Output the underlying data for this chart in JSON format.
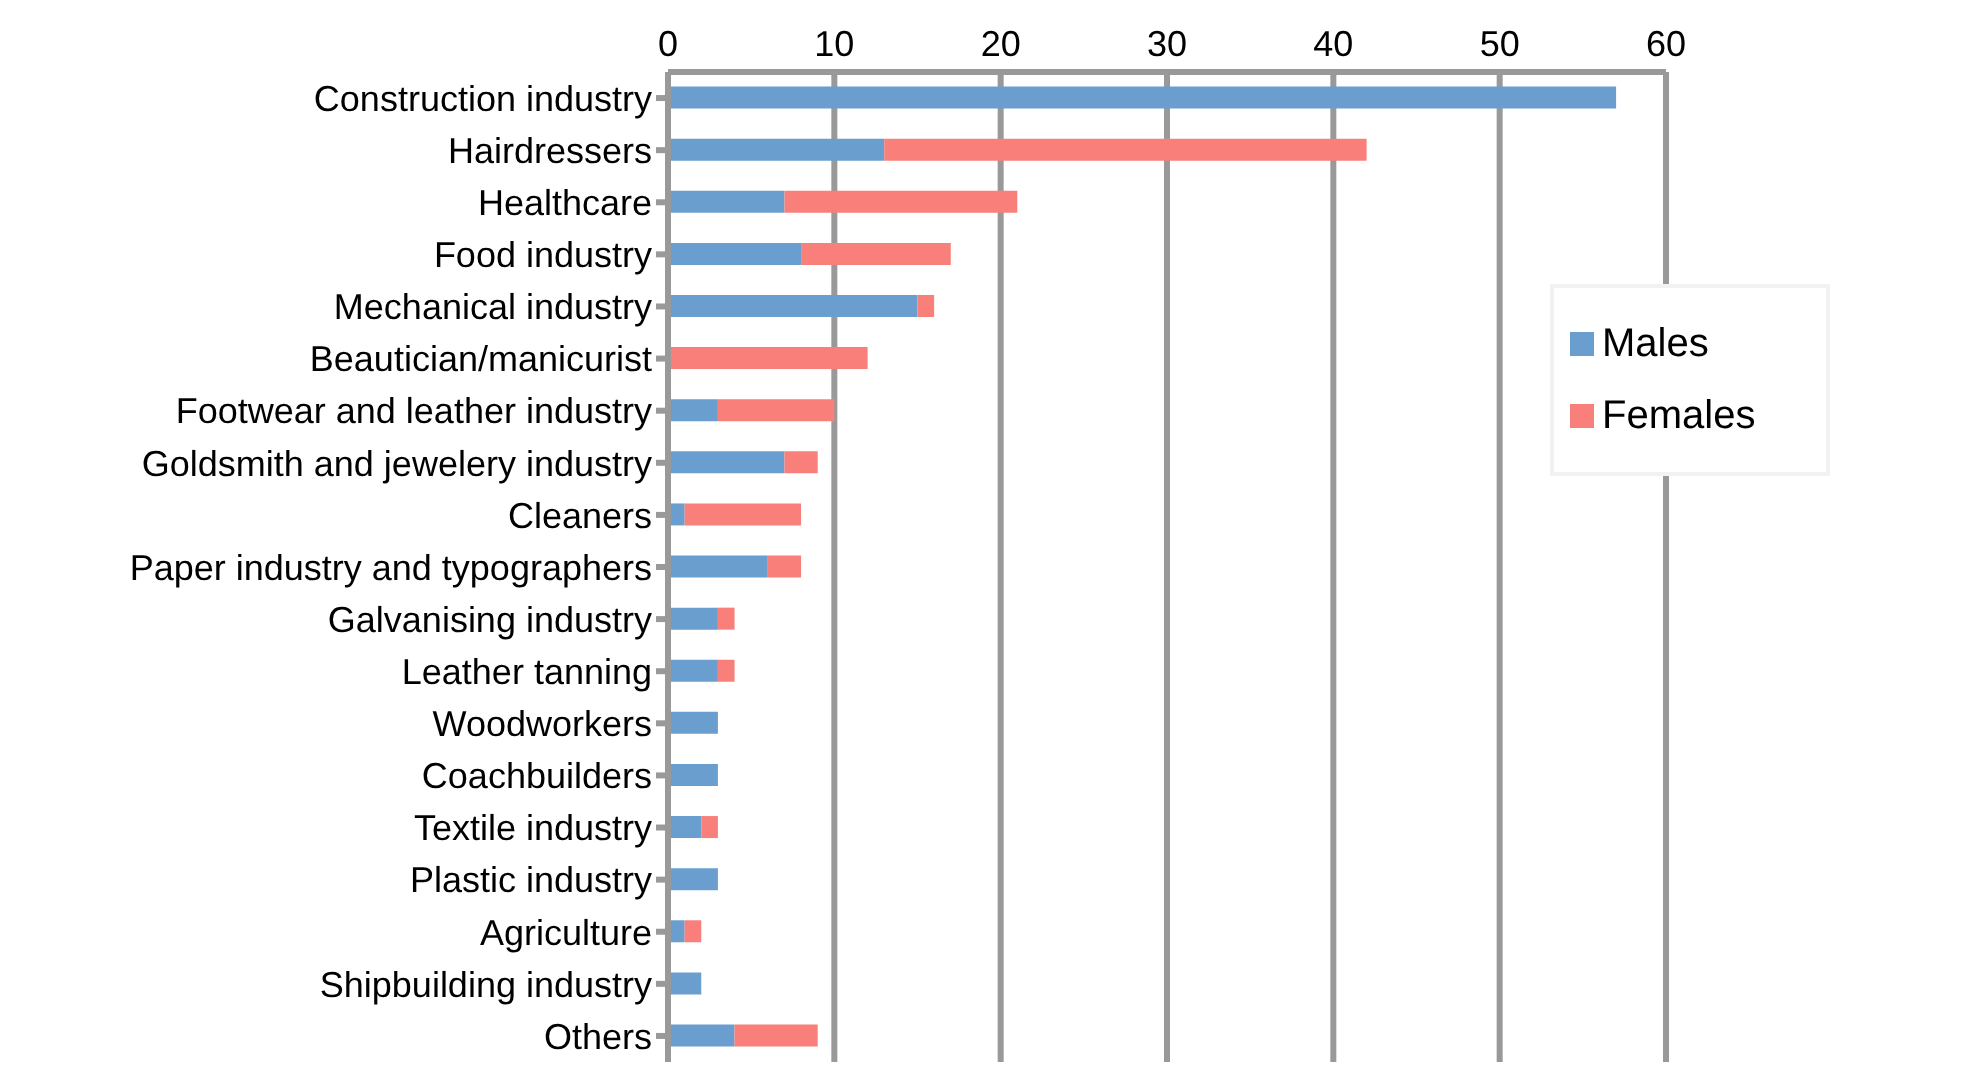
{
  "chart_data": {
    "type": "bar",
    "orientation": "horizontal",
    "stacked": true,
    "categories": [
      "Construction industry",
      "Hairdressers",
      "Healthcare",
      "Food industry",
      "Mechanical industry",
      "Beautician/manicurist",
      "Footwear and leather industry",
      "Goldsmith and jewelery industry",
      "Cleaners",
      "Paper industry and typographers",
      "Galvanising industry",
      "Leather tanning",
      "Woodworkers",
      "Coachbuilders",
      "Textile industry",
      "Plastic industry",
      "Agriculture",
      "Shipbuilding industry",
      "Others"
    ],
    "series": [
      {
        "name": "Males",
        "color": "#6a9ecf",
        "values": [
          57,
          13,
          7,
          8,
          15,
          0,
          3,
          7,
          1,
          6,
          3,
          3,
          3,
          3,
          2,
          3,
          1,
          2,
          4
        ]
      },
      {
        "name": "Females",
        "color": "#f87f7a",
        "values": [
          0,
          29,
          14,
          9,
          1,
          12,
          7,
          2,
          7,
          2,
          1,
          1,
          0,
          0,
          1,
          0,
          1,
          0,
          5
        ]
      }
    ],
    "xlim": [
      0,
      60
    ],
    "xticks": [
      0,
      10,
      20,
      30,
      40,
      50,
      60
    ],
    "grid": "x",
    "legend": "right"
  }
}
